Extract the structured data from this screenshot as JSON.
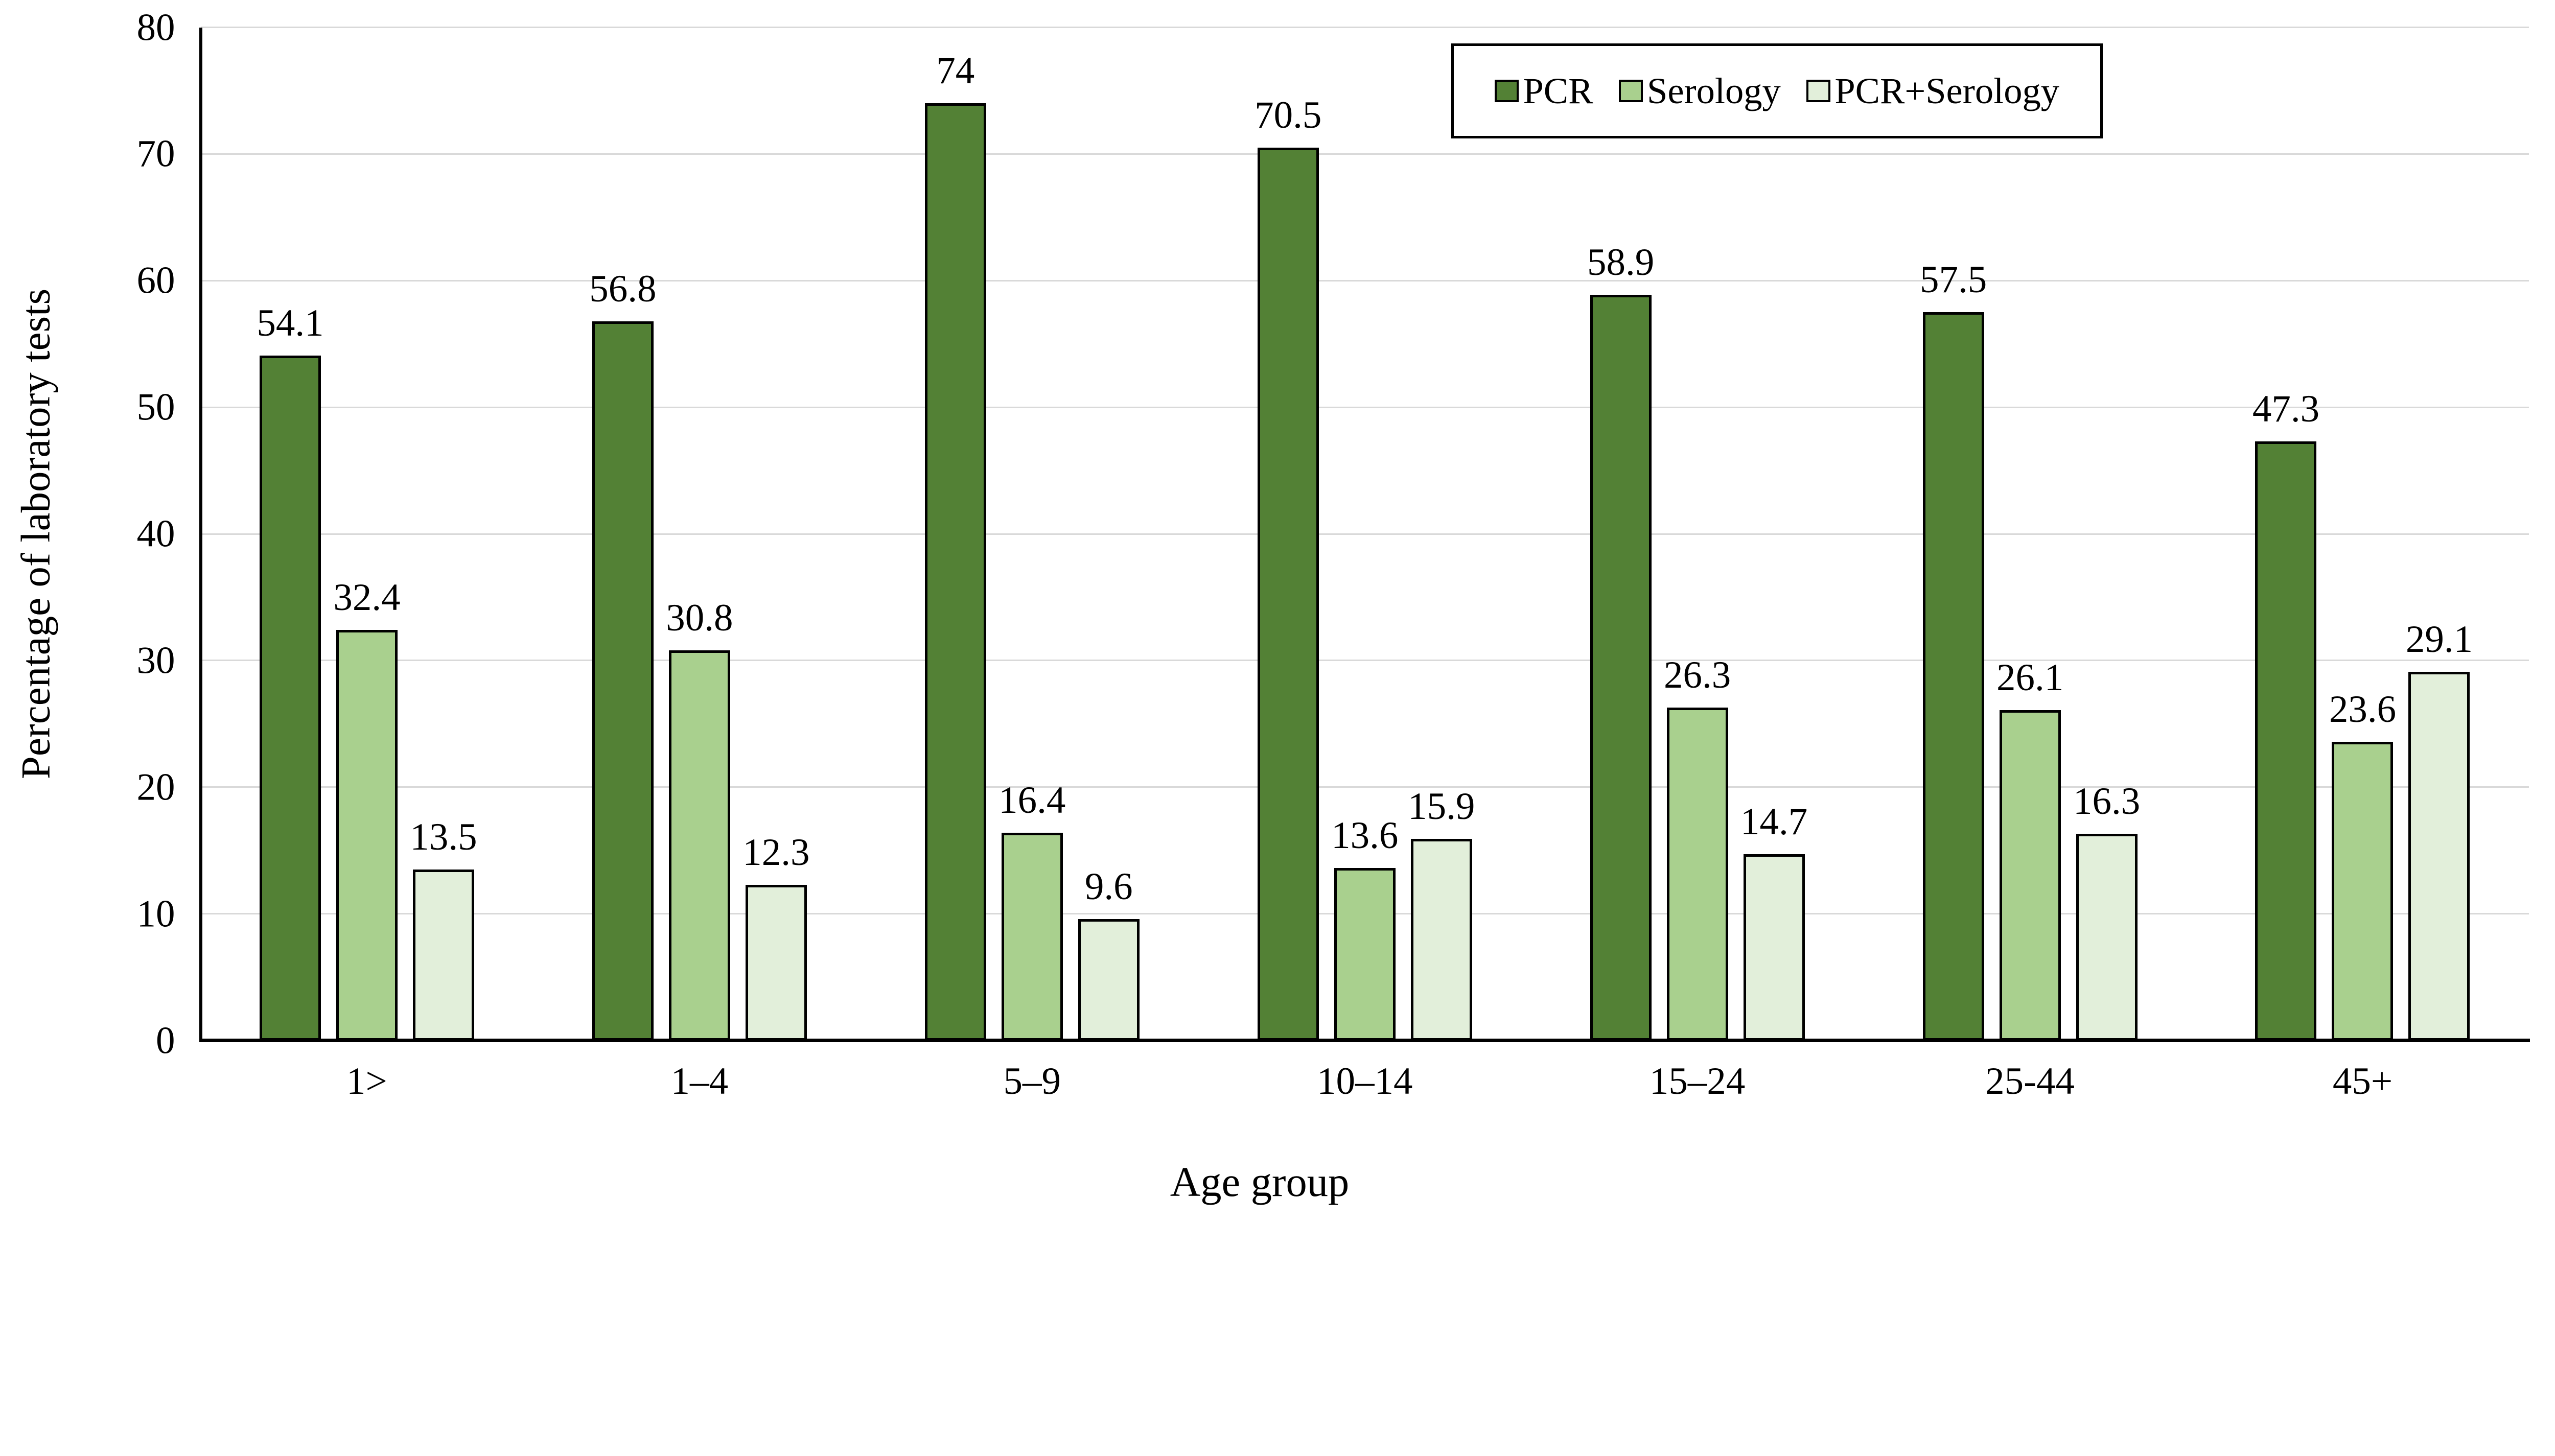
{
  "chart_data": {
    "type": "bar",
    "title": "",
    "xlabel": "Age group",
    "ylabel": "Percentage of laboratory tests",
    "ylim": [
      0,
      80
    ],
    "ytick_step": 10,
    "grid": true,
    "legend_position": "top-right",
    "value_labels": true,
    "categories": [
      "1>",
      "1–4",
      "5–9",
      "10–14",
      "15–24",
      "25-44",
      "45+"
    ],
    "series": [
      {
        "name": "PCR",
        "color": "#538135",
        "values": [
          54.1,
          56.8,
          74,
          70.5,
          58.9,
          57.5,
          47.3
        ]
      },
      {
        "name": "Serology",
        "color": "#A9D08E",
        "values": [
          32.4,
          30.8,
          16.4,
          13.6,
          26.3,
          26.1,
          23.6
        ]
      },
      {
        "name": "PCR+Serology",
        "color": "#E2EFDA",
        "values": [
          13.5,
          12.3,
          9.6,
          15.9,
          14.7,
          16.3,
          29.1
        ]
      }
    ],
    "colors": {
      "bar_border": "#000000",
      "gridline": "#D9D9D9",
      "axis": "#000000",
      "background": "#FFFFFF",
      "text": "#000000"
    }
  }
}
